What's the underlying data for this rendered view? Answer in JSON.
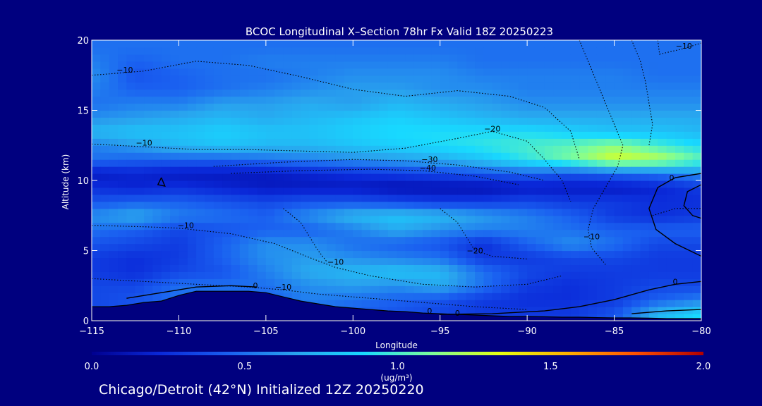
{
  "chart_data": {
    "type": "heatmap",
    "title": "BCOC Longitudinal X–Section 78hr  Fx Valid 18Z 20250223",
    "xlabel": "Longitude",
    "ylabel": "Altitude (km)",
    "xlim": [
      -115,
      -80
    ],
    "ylim": [
      0,
      20
    ],
    "x_ticks": [
      -115,
      -110,
      -105,
      -100,
      -95,
      -90,
      -85,
      -80
    ],
    "y_ticks": [
      0,
      5,
      10,
      15,
      20
    ],
    "colorbar": {
      "min": 0.0,
      "max": 2.0,
      "ticks": [
        0.0,
        0.5,
        1.0,
        1.5,
        2.0
      ],
      "tick_labels": [
        "0.0",
        "0.5",
        "1.0",
        "1.5",
        "2.0"
      ],
      "label": "(ug/m³)",
      "stops": [
        "#00008f",
        "#0a28d8",
        "#1a5ff0",
        "#29a3ee",
        "#18d9ff",
        "#7dfe9a",
        "#e6ff10",
        "#ffb000",
        "#ff5000",
        "#b00000"
      ]
    },
    "field": {
      "x": [
        -115,
        -112.5,
        -110,
        -107.5,
        -105,
        -102.5,
        -100,
        -97.5,
        -95,
        -92.5,
        -90,
        -87.5,
        -85,
        -82.5,
        -80
      ],
      "y": [
        0.5,
        1.5,
        2.5,
        3.5,
        4.5,
        5.5,
        6.5,
        7.5,
        8.5,
        9.5,
        10.5,
        11.5,
        12.5,
        13.5,
        14.5,
        15.5,
        16.5,
        17.5,
        18.5,
        19.5
      ],
      "values": [
        [
          0.35,
          0.4,
          null,
          null,
          null,
          0.5,
          0.45,
          0.4,
          0.35,
          0.3,
          0.3,
          0.3,
          0.4,
          0.75,
          0.9
        ],
        [
          0.35,
          0.4,
          null,
          null,
          0.45,
          0.55,
          0.5,
          0.45,
          0.4,
          0.3,
          0.25,
          0.25,
          0.3,
          0.45,
          0.55
        ],
        [
          0.35,
          0.35,
          0.5,
          0.5,
          0.5,
          0.6,
          0.65,
          0.6,
          0.7,
          0.5,
          0.3,
          0.25,
          0.3,
          0.35,
          0.35
        ],
        [
          0.3,
          0.25,
          0.35,
          0.4,
          0.55,
          0.7,
          0.75,
          0.8,
          0.75,
          0.5,
          0.35,
          0.3,
          0.3,
          0.3,
          0.3
        ],
        [
          0.3,
          0.25,
          0.3,
          0.45,
          0.6,
          0.65,
          0.6,
          0.55,
          0.5,
          0.3,
          0.3,
          0.35,
          0.35,
          0.3,
          0.3
        ],
        [
          0.4,
          0.35,
          0.3,
          0.45,
          0.6,
          0.6,
          0.5,
          0.45,
          0.4,
          0.25,
          0.45,
          0.6,
          0.5,
          0.35,
          0.35
        ],
        [
          0.5,
          0.45,
          0.35,
          0.4,
          0.45,
          0.45,
          0.55,
          0.7,
          0.6,
          0.55,
          0.55,
          0.5,
          0.45,
          0.45,
          0.45
        ],
        [
          0.6,
          0.7,
          0.55,
          0.5,
          0.45,
          0.6,
          0.75,
          0.8,
          0.75,
          0.65,
          0.55,
          0.45,
          0.3,
          0.25,
          0.3
        ],
        [
          0.4,
          0.45,
          0.45,
          0.4,
          0.35,
          0.4,
          0.4,
          0.35,
          0.3,
          0.3,
          0.35,
          0.3,
          0.3,
          0.25,
          0.25
        ],
        [
          0.25,
          0.2,
          0.25,
          0.2,
          0.15,
          0.15,
          0.15,
          0.1,
          0.1,
          0.1,
          0.15,
          0.15,
          0.15,
          0.2,
          0.3
        ],
        [
          0.15,
          0.2,
          0.15,
          0.15,
          0.15,
          0.2,
          0.25,
          0.3,
          0.35,
          0.4,
          0.45,
          0.4,
          0.45,
          0.5,
          0.6
        ],
        [
          0.5,
          0.45,
          0.45,
          0.45,
          0.5,
          0.55,
          0.6,
          0.65,
          0.7,
          0.8,
          0.95,
          1.1,
          1.3,
          1.25,
          1.05
        ],
        [
          0.55,
          0.65,
          0.75,
          0.8,
          0.75,
          0.75,
          0.8,
          0.85,
          0.9,
          0.95,
          1.0,
          1.05,
          1.15,
          1.0,
          0.9
        ],
        [
          0.75,
          0.8,
          0.8,
          0.85,
          0.8,
          0.8,
          0.85,
          0.9,
          0.9,
          0.9,
          0.9,
          0.85,
          0.8,
          0.8,
          0.75
        ],
        [
          0.6,
          0.65,
          0.7,
          0.75,
          0.7,
          0.75,
          0.8,
          0.85,
          0.8,
          0.75,
          0.7,
          0.7,
          0.7,
          0.7,
          0.7
        ],
        [
          0.5,
          0.55,
          0.55,
          0.65,
          0.65,
          0.7,
          0.65,
          0.75,
          0.7,
          0.65,
          0.6,
          0.6,
          0.6,
          0.6,
          0.6
        ],
        [
          0.55,
          0.45,
          0.45,
          0.5,
          0.55,
          0.6,
          0.65,
          0.65,
          0.6,
          0.6,
          0.55,
          0.55,
          0.55,
          0.55,
          0.55
        ],
        [
          0.6,
          0.4,
          0.45,
          0.5,
          0.5,
          0.55,
          0.6,
          0.6,
          0.6,
          0.55,
          0.55,
          0.55,
          0.55,
          0.5,
          0.5
        ],
        [
          0.55,
          0.45,
          0.5,
          0.5,
          0.55,
          0.55,
          0.55,
          0.55,
          0.55,
          0.5,
          0.5,
          0.5,
          0.5,
          0.5,
          0.5
        ],
        [
          0.5,
          0.5,
          0.5,
          0.5,
          0.5,
          0.5,
          0.5,
          0.5,
          0.5,
          0.5,
          0.5,
          0.5,
          0.5,
          0.5,
          0.5
        ]
      ]
    },
    "terrain": {
      "x": [
        -115,
        -114,
        -113,
        -112,
        -111,
        -110,
        -109,
        -108,
        -107,
        -106,
        -105,
        -104,
        -103,
        -102,
        -101,
        -100,
        -99,
        -98,
        -97,
        -96,
        -95,
        -94,
        -93,
        -92,
        -91,
        -90,
        -89,
        -88,
        -87,
        -86,
        -85,
        -84,
        -83,
        -82,
        -81,
        -80
      ],
      "y": [
        1.0,
        1.0,
        1.1,
        1.3,
        1.4,
        1.8,
        2.1,
        2.1,
        2.1,
        2.1,
        2.0,
        1.7,
        1.4,
        1.2,
        1.0,
        0.9,
        0.8,
        0.7,
        0.65,
        0.55,
        0.5,
        0.45,
        0.4,
        0.35,
        0.3,
        0.3,
        0.28,
        0.25,
        0.25,
        0.22,
        0.2,
        0.2,
        0.18,
        0.15,
        0.15,
        0.15
      ]
    },
    "temperature_contours": {
      "style": "dotted",
      "labels": [
        {
          "text": "−10",
          "x": -113.1,
          "y": 17.7
        },
        {
          "text": "−10",
          "x": -112.0,
          "y": 12.5
        },
        {
          "text": "−10",
          "x": -109.6,
          "y": 6.6
        },
        {
          "text": "−10",
          "x": -101.0,
          "y": 4.0
        },
        {
          "text": "−10",
          "x": -104.0,
          "y": 2.2
        },
        {
          "text": "−10",
          "x": -86.3,
          "y": 5.8
        },
        {
          "text": "−10",
          "x": -81.0,
          "y": 19.4
        },
        {
          "text": "−20",
          "x": -92.0,
          "y": 13.5
        },
        {
          "text": "−20",
          "x": -93.0,
          "y": 4.8
        },
        {
          "text": "−30",
          "x": -95.6,
          "y": 11.3
        },
        {
          "text": "−40",
          "x": -95.7,
          "y": 10.7
        },
        {
          "text": "0",
          "x": -105.6,
          "y": 2.3
        },
        {
          "text": "0",
          "x": -95.6,
          "y": 0.5
        },
        {
          "text": "0",
          "x": -94.0,
          "y": 0.35
        },
        {
          "text": "0",
          "x": -81.5,
          "y": 2.6
        },
        {
          "text": "0",
          "x": -81.7,
          "y": 10.0
        }
      ]
    }
  },
  "footer": {
    "text": "Chicago/Detroit (42°N) Initialized 12Z 20250220"
  }
}
